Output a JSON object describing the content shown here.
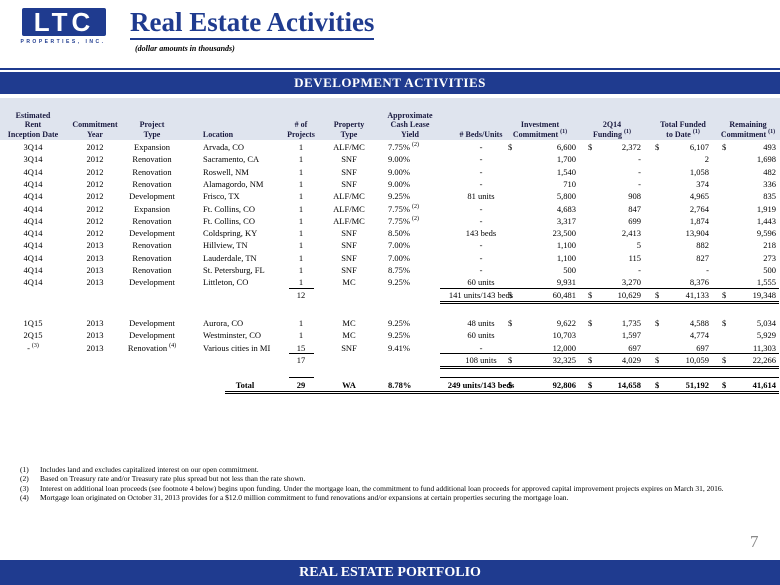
{
  "header": {
    "logo": "LTC",
    "logo_sub": "PROPERTIES, INC.",
    "title": "Real Estate Activities",
    "subtitle": "(dollar amounts in thousands)"
  },
  "banner": "DEVELOPMENT ACTIVITIES",
  "table": {
    "columns": [
      {
        "text": "Estimated\nRent\nInception Date"
      },
      {
        "text": "Commitment\nYear"
      },
      {
        "text": "Project\nType"
      },
      {
        "text": "Location"
      },
      {
        "text": "# of\nProjects"
      },
      {
        "text": "Property\nType"
      },
      {
        "text": "Approximate\nCash Lease\nYield"
      },
      {
        "text": "# Beds/Units"
      },
      {
        "text": "Investment\nCommitment",
        "sup": "(1)"
      },
      {
        "text": "2Q14\nFunding",
        "sup": "(1)"
      },
      {
        "text": "Total Funded\nto Date",
        "sup": "(1)"
      },
      {
        "text": "Remaining\nCommitment",
        "sup": "(1)"
      }
    ],
    "groups": [
      {
        "rows": [
          [
            "3Q14",
            "2012",
            "Expansion",
            "Arvada, CO",
            "1",
            "ALF/MC",
            {
              "text": "7.75%",
              "sup": "(2)"
            },
            "-",
            {
              "cur": "$",
              "text": "6,600"
            },
            {
              "cur": "$",
              "text": "2,372"
            },
            {
              "cur": "$",
              "text": "6,107"
            },
            {
              "cur": "$",
              "text": "493"
            }
          ],
          [
            "3Q14",
            "2012",
            "Renovation",
            "Sacramento, CA",
            "1",
            "SNF",
            "9.00%",
            "-",
            "1,700",
            "-",
            "2",
            "1,698"
          ],
          [
            "4Q14",
            "2012",
            "Renovation",
            "Roswell, NM",
            "1",
            "SNF",
            "9.00%",
            "-",
            "1,540",
            "-",
            "1,058",
            "482"
          ],
          [
            "4Q14",
            "2012",
            "Renovation",
            "Alamagordo, NM",
            "1",
            "SNF",
            "9.00%",
            "-",
            "710",
            "-",
            "374",
            "336"
          ],
          [
            "4Q14",
            "2012",
            "Development",
            "Frisco, TX",
            "1",
            "ALF/MC",
            "9.25%",
            "81 units",
            "5,800",
            "908",
            "4,965",
            "835"
          ],
          [
            "4Q14",
            "2012",
            "Expansion",
            "Ft. Collins, CO",
            "1",
            "ALF/MC",
            {
              "text": "7.75%",
              "sup": "(2)"
            },
            "-",
            "4,683",
            "847",
            "2,764",
            "1,919"
          ],
          [
            "4Q14",
            "2012",
            "Renovation",
            "Ft. Collins, CO",
            "1",
            "ALF/MC",
            {
              "text": "7.75%",
              "sup": "(2)"
            },
            "-",
            "3,317",
            "699",
            "1,874",
            "1,443"
          ],
          [
            "4Q14",
            "2012",
            "Development",
            "Coldspring, KY",
            "1",
            "SNF",
            "8.50%",
            "143 beds",
            "23,500",
            "2,413",
            "13,904",
            "9,596"
          ],
          [
            "4Q14",
            "2013",
            "Renovation",
            "Hillview, TN",
            "1",
            "SNF",
            "7.00%",
            "-",
            "1,100",
            "5",
            "882",
            "218"
          ],
          [
            "4Q14",
            "2013",
            "Renovation",
            "Lauderdale, TN",
            "1",
            "SNF",
            "7.00%",
            "-",
            "1,100",
            "115",
            "827",
            "273"
          ],
          [
            "4Q14",
            "2013",
            "Renovation",
            "St. Petersburg, FL",
            "1",
            "SNF",
            "8.75%",
            "-",
            "500",
            "-",
            "-",
            "500"
          ],
          [
            "4Q14",
            "2013",
            "Development",
            "Littleton, CO",
            "1",
            "MC",
            "9.25%",
            "60 units",
            "9,931",
            "3,270",
            "8,376",
            "1,555"
          ]
        ],
        "subtotal": {
          "projects": "12",
          "beds": "141 units/143 beds",
          "investment": {
            "cur": "$",
            "text": "60,481"
          },
          "funding": {
            "cur": "$",
            "text": "10,629"
          },
          "funded": {
            "cur": "$",
            "text": "41,133"
          },
          "remaining": {
            "cur": "$",
            "text": "19,348"
          }
        }
      },
      {
        "rows": [
          [
            "1Q15",
            "2013",
            "Development",
            "Aurora, CO",
            "1",
            "MC",
            "9.25%",
            "48 units",
            {
              "cur": "$",
              "text": "9,622"
            },
            {
              "cur": "$",
              "text": "1,735"
            },
            {
              "cur": "$",
              "text": "4,588"
            },
            {
              "cur": "$",
              "text": "5,034"
            }
          ],
          [
            "2Q15",
            "2013",
            "Development",
            "Westminster, CO",
            "1",
            "MC",
            "9.25%",
            "60 units",
            "10,703",
            "1,597",
            "4,774",
            "5,929"
          ],
          [
            {
              "text": "-",
              "sup": "(3)"
            },
            "2013",
            {
              "text": "Renovation",
              "sup": "(4)"
            },
            "Various cities in MI",
            "15",
            "SNF",
            "9.41%",
            "-",
            "12,000",
            "697",
            "697",
            "11,303"
          ]
        ],
        "subtotal": {
          "projects": "17",
          "beds": "108 units",
          "investment": {
            "cur": "$",
            "text": "32,325"
          },
          "funding": {
            "cur": "$",
            "text": "4,029"
          },
          "funded": {
            "cur": "$",
            "text": "10,059"
          },
          "remaining": {
            "cur": "$",
            "text": "22,266"
          }
        }
      }
    ],
    "total": {
      "label": "Total",
      "projects": "29",
      "wa": "WA",
      "yield": "8.78%",
      "beds": "249 units/143 beds",
      "investment": {
        "cur": "$",
        "text": "92,806"
      },
      "funding": {
        "cur": "$",
        "text": "14,658"
      },
      "funded": {
        "cur": "$",
        "text": "51,192"
      },
      "remaining": {
        "cur": "$",
        "text": "41,614"
      }
    }
  },
  "footnotes": [
    {
      "mark": "(1)",
      "text": "Includes land and excludes capitalized interest on our open commitment."
    },
    {
      "mark": "(2)",
      "text": "Based on Treasury rate and/or Treasury rate plus spread but not less than the rate shown."
    },
    {
      "mark": "(3)",
      "text": "Interest on additional loan proceeds (see footnote 4 below) begins upon funding. Under the mortgage loan, the commitment to fund additional loan proceeds for approved capital improvement projects expires on March 31, 2016."
    },
    {
      "mark": "(4)",
      "text": "Mortgage loan originated on October 31, 2013 provides for a $12.0 million commitment to fund renovations and/or expansions at certain properties securing the mortgage loan."
    }
  ],
  "footer": {
    "section": "REAL ESTATE PORTFOLIO",
    "page": "7"
  }
}
